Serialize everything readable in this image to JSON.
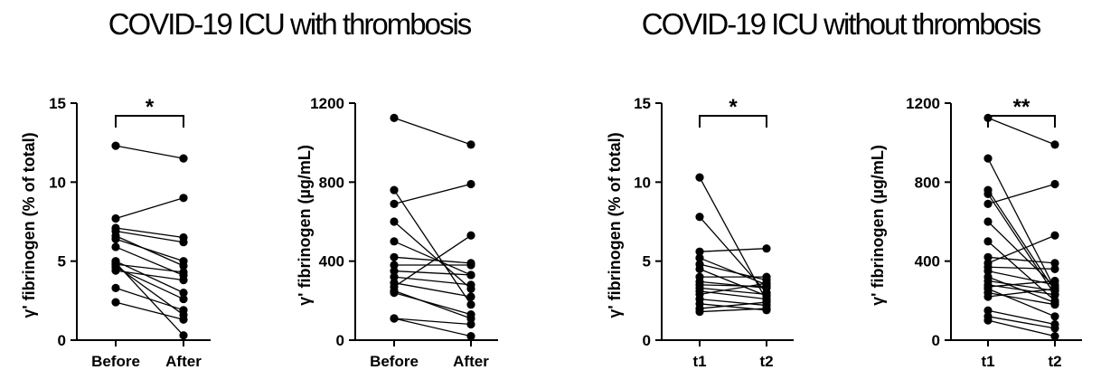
{
  "titles": {
    "left": "COVID-19 ICU with thrombosis",
    "right": "COVID-19 ICU without thrombosis"
  },
  "colors": {
    "ink": "#000000",
    "background": "#ffffff"
  },
  "chart_data": [
    {
      "type": "line",
      "subtype": "paired-before-after",
      "title": "",
      "xlabel": "",
      "ylabel": "γ' fibrinogen (% of total)",
      "categories": [
        "Before",
        "After"
      ],
      "ylim": [
        0,
        15
      ],
      "yticks": [
        "0",
        "5",
        "10",
        "15"
      ],
      "significance": "*",
      "pairs": [
        [
          12.3,
          11.5
        ],
        [
          7.7,
          9.0
        ],
        [
          7.1,
          6.5
        ],
        [
          6.9,
          6.2
        ],
        [
          6.6,
          4.7
        ],
        [
          6.4,
          5.0
        ],
        [
          5.9,
          4.1
        ],
        [
          5.0,
          3.0
        ],
        [
          4.8,
          4.3
        ],
        [
          4.6,
          2.6
        ],
        [
          4.4,
          3.8
        ],
        [
          3.3,
          1.9
        ],
        [
          2.4,
          1.3
        ],
        [
          4.9,
          0.3
        ],
        [
          4.7,
          1.6
        ]
      ]
    },
    {
      "type": "line",
      "subtype": "paired-before-after",
      "title": "",
      "xlabel": "",
      "ylabel": "γ' fibrinogen (µg/mL)",
      "categories": [
        "Before",
        "After"
      ],
      "ylim": [
        0,
        1200
      ],
      "yticks": [
        "0",
        "400",
        "800",
        "1200"
      ],
      "significance": "",
      "pairs": [
        [
          1125,
          990
        ],
        [
          760,
          180
        ],
        [
          690,
          790
        ],
        [
          600,
          260
        ],
        [
          500,
          330
        ],
        [
          420,
          390
        ],
        [
          380,
          380
        ],
        [
          350,
          330
        ],
        [
          320,
          280
        ],
        [
          290,
          220
        ],
        [
          270,
          530
        ],
        [
          240,
          130
        ],
        [
          110,
          80
        ],
        [
          250,
          110
        ],
        [
          110,
          20
        ]
      ]
    },
    {
      "type": "line",
      "subtype": "paired-before-after",
      "title": "",
      "xlabel": "",
      "ylabel": "γ' fibrinogen (% of total)",
      "categories": [
        "t1",
        "t2"
      ],
      "ylim": [
        0,
        15
      ],
      "yticks": [
        "0",
        "5",
        "10",
        "15"
      ],
      "significance": "*",
      "pairs": [
        [
          10.3,
          2.5
        ],
        [
          7.8,
          3.0
        ],
        [
          5.6,
          5.8
        ],
        [
          5.2,
          3.5
        ],
        [
          4.8,
          3.8
        ],
        [
          4.5,
          2.8
        ],
        [
          4.0,
          4.0
        ],
        [
          3.7,
          3.3
        ],
        [
          3.5,
          3.4
        ],
        [
          3.3,
          2.9
        ],
        [
          3.1,
          2.6
        ],
        [
          2.9,
          3.6
        ],
        [
          2.6,
          2.2
        ],
        [
          2.3,
          1.9
        ],
        [
          2.0,
          2.4
        ],
        [
          1.8,
          2.0
        ]
      ]
    },
    {
      "type": "line",
      "subtype": "paired-before-after",
      "title": "",
      "xlabel": "",
      "ylabel": "γ' fibrinogen (µg/mL)",
      "categories": [
        "t1",
        "t2"
      ],
      "ylim": [
        0,
        1200
      ],
      "yticks": [
        "0",
        "400",
        "800",
        "1200"
      ],
      "significance": "**",
      "pairs": [
        [
          1125,
          990
        ],
        [
          920,
          260
        ],
        [
          760,
          250
        ],
        [
          740,
          230
        ],
        [
          690,
          790
        ],
        [
          600,
          270
        ],
        [
          500,
          200
        ],
        [
          420,
          390
        ],
        [
          390,
          530
        ],
        [
          370,
          360
        ],
        [
          350,
          280
        ],
        [
          320,
          190
        ],
        [
          300,
          250
        ],
        [
          280,
          230
        ],
        [
          270,
          300
        ],
        [
          260,
          120
        ],
        [
          240,
          180
        ],
        [
          220,
          260
        ],
        [
          150,
          80
        ],
        [
          120,
          60
        ],
        [
          100,
          20
        ]
      ]
    }
  ]
}
